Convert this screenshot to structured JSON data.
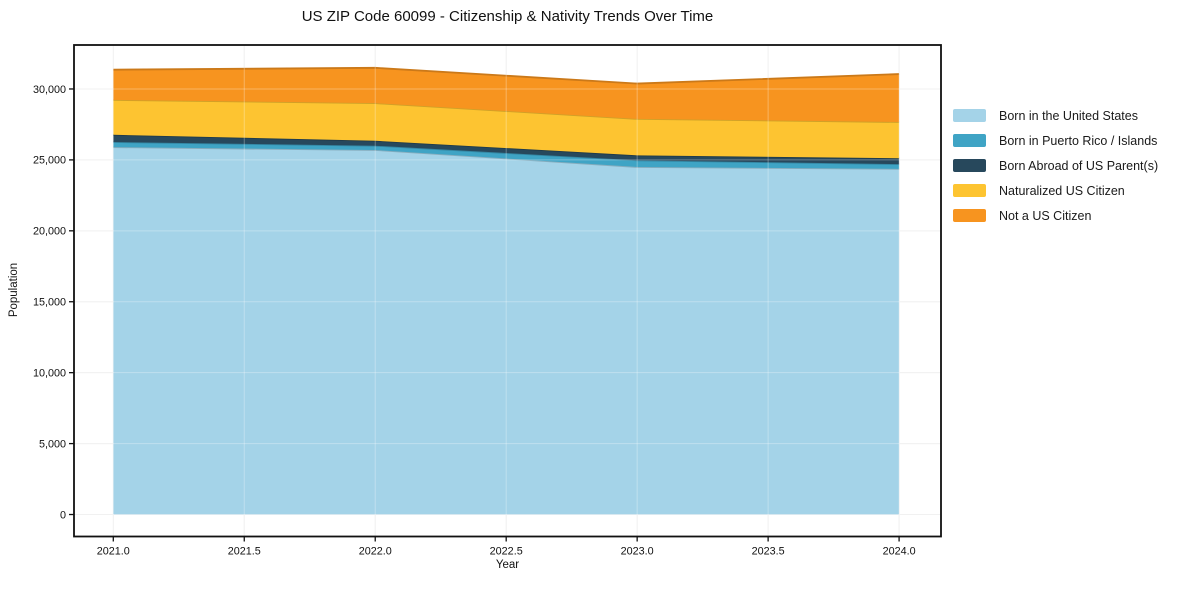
{
  "chart_data": {
    "type": "area",
    "stacked": true,
    "title": "US ZIP Code 60099 - Citizenship & Nativity Trends Over Time",
    "xlabel": "Year",
    "ylabel": "Population",
    "x": [
      2021,
      2022,
      2023,
      2024
    ],
    "series": [
      {
        "name": "Born in the United States",
        "color": "#a4d3e8",
        "values": [
          25900,
          25700,
          24500,
          24370
        ]
      },
      {
        "name": "Born in Puerto Rico / Islands",
        "color": "#3fa4c5",
        "values": [
          360,
          300,
          470,
          330
        ]
      },
      {
        "name": "Born Abroad of US Parent(s)",
        "color": "#27485c",
        "values": [
          510,
          350,
          350,
          420
        ]
      },
      {
        "name": "Naturalized US Citizen",
        "color": "#fdc431",
        "values": [
          2460,
          2650,
          2570,
          2550
        ]
      },
      {
        "name": "Not a US Citizen",
        "color": "#f7941f",
        "values": [
          2130,
          2490,
          2490,
          3380
        ]
      }
    ],
    "xlim": [
      2020.85,
      2024.16
    ],
    "ylim": [
      -1550,
      33100
    ],
    "xticks": {
      "values": [
        2021.0,
        2021.5,
        2022.0,
        2022.5,
        2023.0,
        2023.5,
        2024.0
      ],
      "labels": [
        "2021.0",
        "2021.5",
        "2022.0",
        "2022.5",
        "2023.0",
        "2023.5",
        "2024.0"
      ]
    },
    "yticks": {
      "values": [
        0,
        5000,
        10000,
        15000,
        20000,
        25000,
        30000
      ],
      "labels": [
        "0",
        "5,000",
        "10,000",
        "15,000",
        "20,000",
        "25,000",
        "30,000"
      ]
    },
    "grid": true,
    "legend_position": "right",
    "frame_color": "#111111",
    "grid_color": "#ebebeb"
  }
}
